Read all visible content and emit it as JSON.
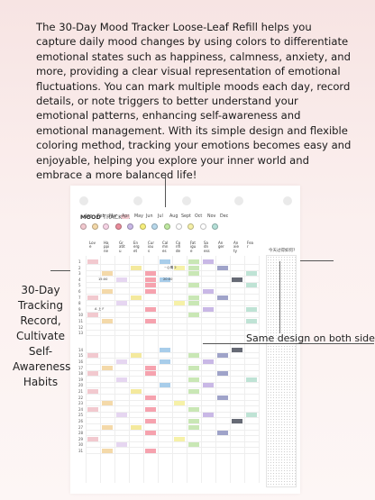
{
  "intro_text": "The 30-Day Mood Tracker Loose-Leaf Refill helps you capture daily mood changes by using colors to differentiate emotional states such as happiness, calmness, anxiety, and more, providing a clear visual representation of emotional fluctuations. You can mark multiple moods each day, record details, or note triggers to better understand your emotional patterns, enhancing self-awareness and emotional management. With its simple design and flexible coloring method, tracking your emotions becomes easy and enjoyable, helping you explore your inner world and embrace a more balanced life!",
  "sheet": {
    "brand_bold": "MOOD",
    "brand_rest": " TRACKER",
    "months": [
      "Jan",
      "Feb",
      "Mar",
      "Apr",
      "May",
      "Jun",
      "Jul",
      "Aug",
      "Sept",
      "Oct",
      "Nov",
      "Dec"
    ],
    "selected_month": "Apr",
    "mood_colors": [
      "#f2c9cf",
      "#f4d9a9",
      "#f6d3e5",
      "#e98c9b",
      "#c9b8e6",
      "#f7ef7c",
      "#b8d9ec",
      "#bfe8a1",
      "#ffffff",
      "#f6f1a8",
      "#ffffff",
      "#b5e0d8"
    ],
    "moods": [
      {
        "label": "Love 喜爱",
        "color": "#f2c9cf"
      },
      {
        "label": "Happiness 开心",
        "color": "#f4d9a9"
      },
      {
        "label": "Gratitude 感恩",
        "color": "#e6d6f1"
      },
      {
        "label": "Energetic 活力",
        "color": "#f4e99d"
      },
      {
        "label": "Curious 好奇",
        "color": "#f6a2ae"
      },
      {
        "label": "Calmness 平静",
        "color": "#a8cdea"
      },
      {
        "label": "Confidence 自信",
        "color": "#f6f1a8"
      },
      {
        "label": "Fatigue 疲惫",
        "color": "#c9e7b5"
      },
      {
        "label": "Sadness 伤心",
        "color": "#c9b8e6"
      },
      {
        "label": "Anger 生气",
        "color": "#9fa3c9"
      },
      {
        "label": "Anxiety 焦虑",
        "color": "#666a75"
      },
      {
        "label": "Fear 恐惧",
        "color": "#bfe3d5"
      }
    ],
    "notes_header": "今天过得如何?",
    "days_top": [
      "1",
      "2",
      "3",
      "4",
      "5",
      "6",
      "7",
      "8",
      "9",
      "10",
      "11",
      "12",
      "13"
    ],
    "days_bottom": [
      "14",
      "15",
      "16",
      "17",
      "18",
      "19",
      "20",
      "21",
      "22",
      "23",
      "24",
      "25",
      "26",
      "27",
      "28",
      "29",
      "30",
      "31"
    ],
    "handwritten": {
      "day2_note": "~心情 2",
      "day4_note_a": "15:00",
      "day4_note_b": "20:00",
      "day9_note": "A 上 F"
    }
  },
  "caption_left": "30-Day Tracking Record, Cultivate Self-Awareness Habits",
  "caption_right": "Same design on both sides"
}
